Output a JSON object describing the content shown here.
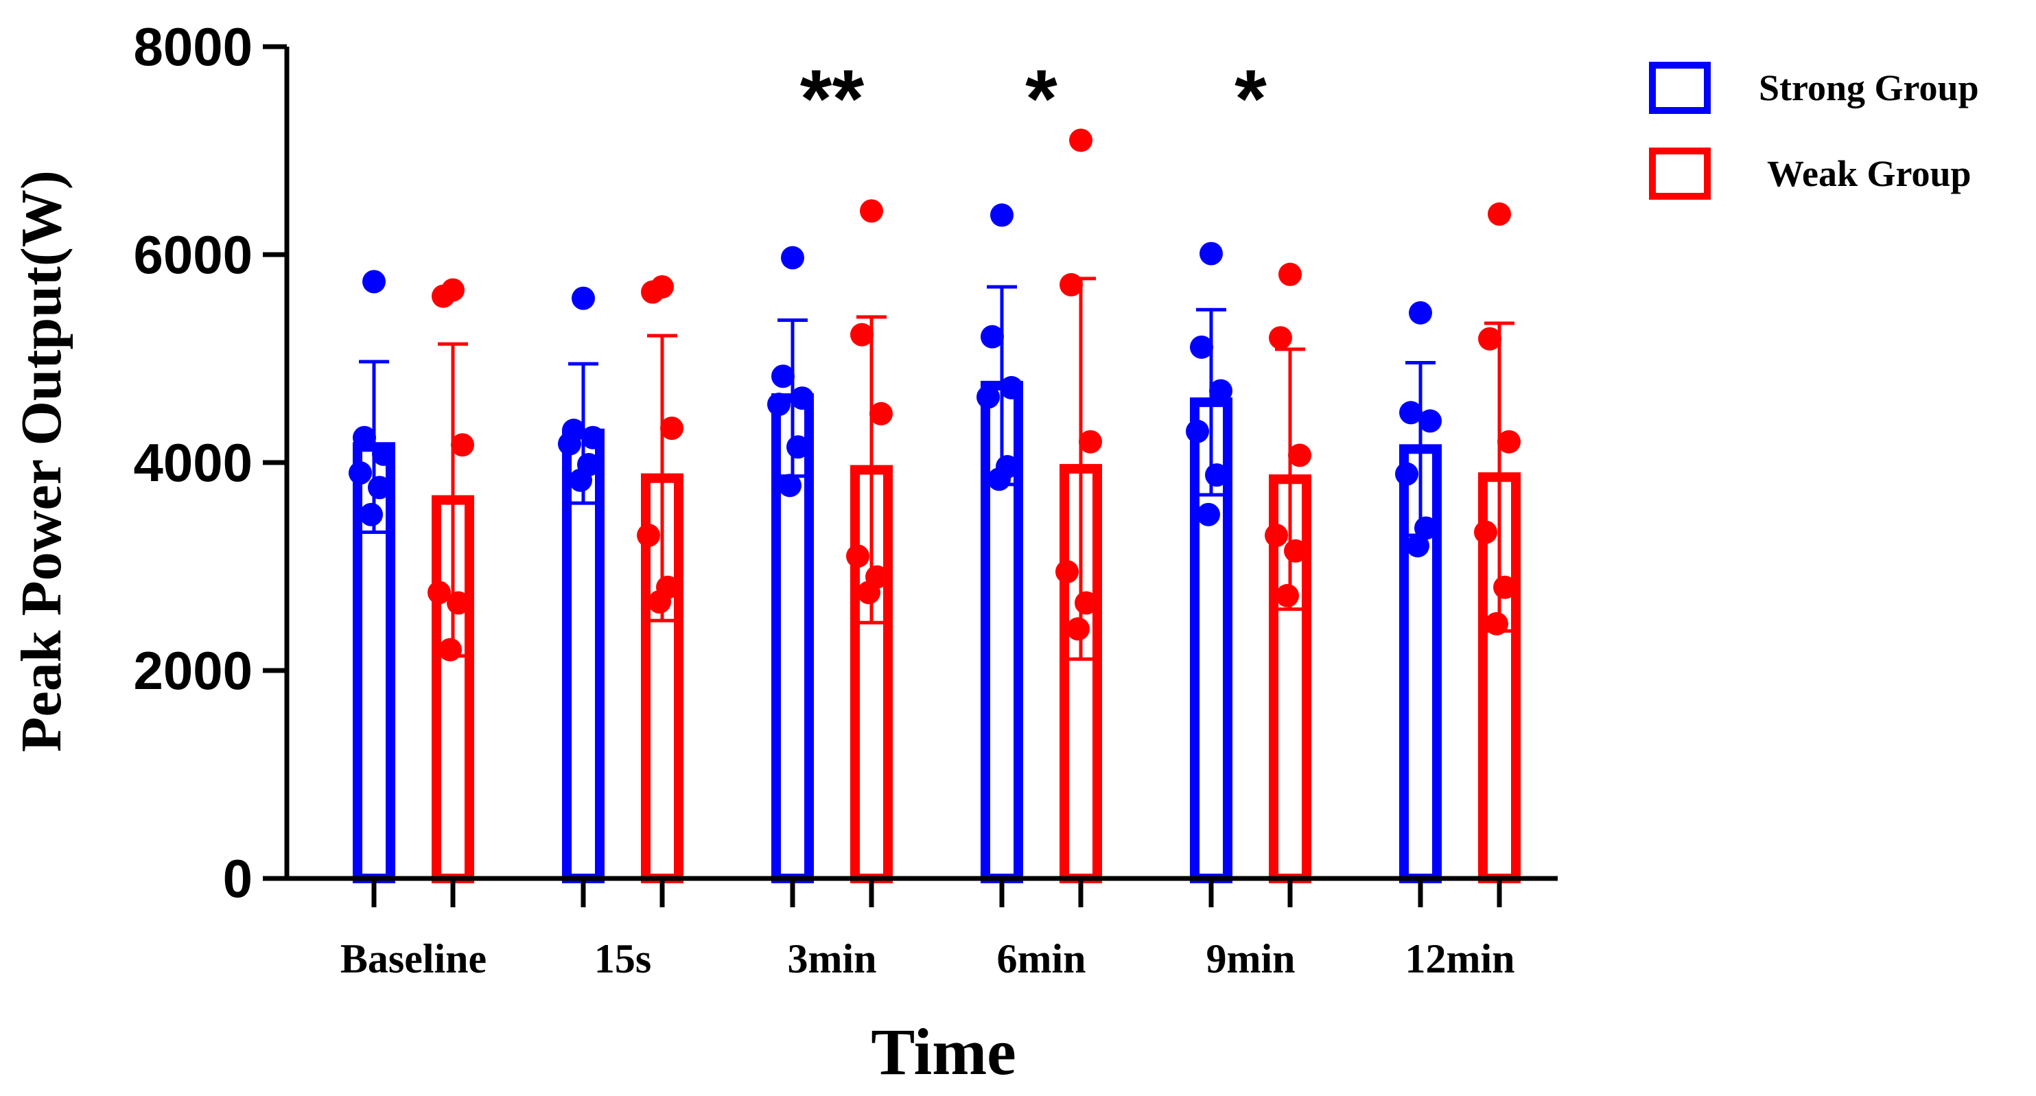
{
  "chart_data": {
    "type": "bar",
    "title": "",
    "xlabel": "Time",
    "ylabel": "Peak Power Output(W)",
    "ylim": [
      0,
      8000
    ],
    "yticks": [
      0,
      2000,
      4000,
      6000,
      8000
    ],
    "categories": [
      "Baseline",
      "15s",
      "3min",
      "6min",
      "9min",
      "12min"
    ],
    "legend_position": "top-right",
    "series": [
      {
        "name": "Strong Group",
        "color": "#0000ff",
        "values": [
          4150,
          4280,
          4620,
          4740,
          4580,
          4130
        ],
        "error_sd": [
          820,
          670,
          750,
          950,
          890,
          830
        ],
        "points": [
          [
            5740,
            4240,
            4080,
            3900,
            3760,
            3500
          ],
          [
            5580,
            4310,
            4240,
            4180,
            3980,
            3830
          ],
          [
            5970,
            4830,
            4620,
            4560,
            4150,
            3780
          ],
          [
            6380,
            5210,
            4720,
            4630,
            3960,
            3840
          ],
          [
            6010,
            5110,
            4690,
            4300,
            3880,
            3500
          ],
          [
            5440,
            4480,
            4400,
            3890,
            3370,
            3200
          ]
        ]
      },
      {
        "name": "Weak Group",
        "color": "#ff0000",
        "values": [
          3640,
          3850,
          3930,
          3940,
          3840,
          3860
        ],
        "error_sd": [
          1500,
          1370,
          1470,
          1830,
          1250,
          1480
        ],
        "points": [
          [
            5660,
            5600,
            4170,
            2750,
            2650,
            2200
          ],
          [
            5690,
            5640,
            4330,
            3300,
            2800,
            2660
          ],
          [
            6420,
            5230,
            4470,
            3100,
            2900,
            2750
          ],
          [
            7100,
            5710,
            4200,
            2950,
            2650,
            2400
          ],
          [
            5810,
            5200,
            4070,
            3300,
            3150,
            2720
          ],
          [
            6390,
            5190,
            4200,
            3330,
            2800,
            2450
          ]
        ]
      }
    ],
    "annotations": [
      {
        "category": "3min",
        "text": "**"
      },
      {
        "category": "6min",
        "text": "*"
      },
      {
        "category": "9min",
        "text": "*"
      }
    ]
  }
}
